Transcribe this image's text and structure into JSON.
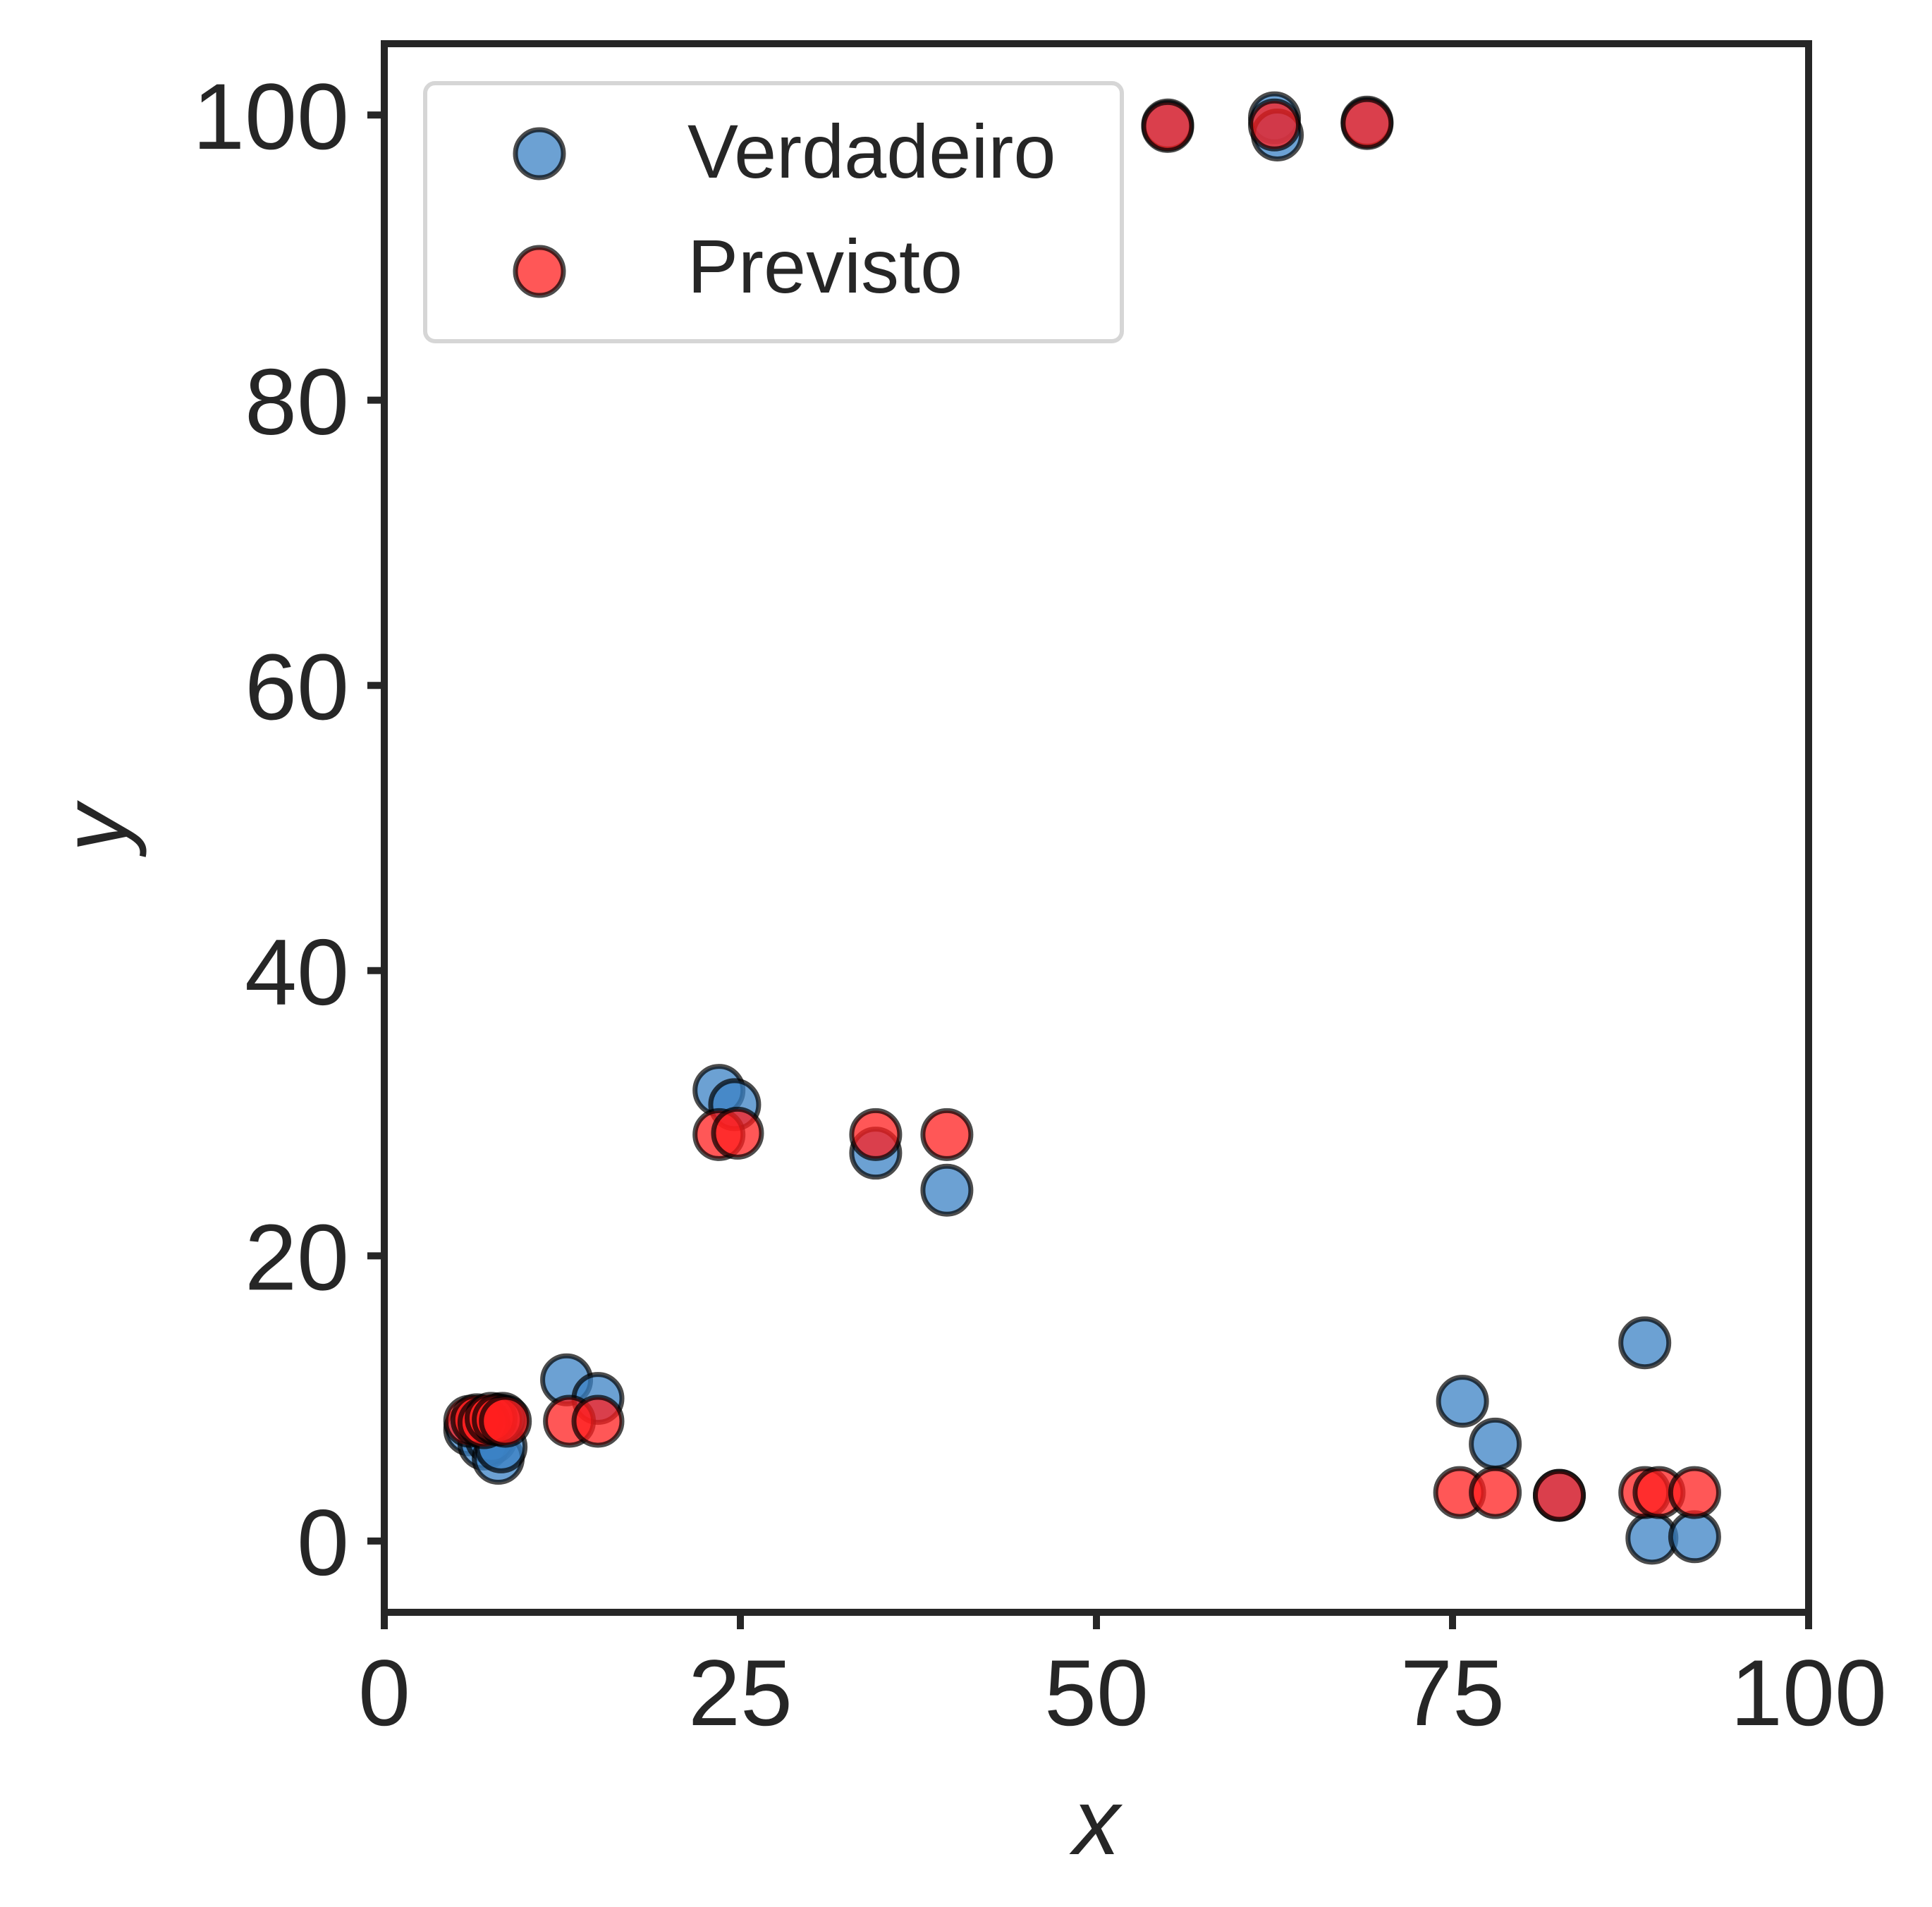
{
  "chart_data": {
    "type": "scatter",
    "title": "",
    "xlabel": "x",
    "ylabel": "y",
    "xlim": [
      0,
      100
    ],
    "ylim": [
      -5,
      105
    ],
    "xticks": [
      0,
      25,
      50,
      75,
      100
    ],
    "yticks": [
      0,
      20,
      40,
      60,
      80,
      100
    ],
    "grid": false,
    "legend_position": "top-left",
    "series": [
      {
        "name": "Verdadeiro",
        "color": "#3b82c4",
        "opacity": 0.75,
        "points": [
          [
            6,
            7.8
          ],
          [
            6.7,
            8.4
          ],
          [
            7,
            6.8
          ],
          [
            7.5,
            7.2
          ],
          [
            8,
            5.8
          ],
          [
            8.2,
            6.6
          ],
          [
            8.3,
            8.6
          ],
          [
            12.8,
            11.3
          ],
          [
            15,
            10
          ],
          [
            23.5,
            31.6
          ],
          [
            24.6,
            30.6
          ],
          [
            34.5,
            27.2
          ],
          [
            39.5,
            24.6
          ],
          [
            55,
            99.3
          ],
          [
            62.5,
            99.8
          ],
          [
            62.7,
            98.6
          ],
          [
            69,
            99.5
          ],
          [
            75.7,
            9.8
          ],
          [
            78,
            6.8
          ],
          [
            82.5,
            3.2
          ],
          [
            88.5,
            13.9
          ],
          [
            89,
            0.2
          ],
          [
            92,
            0.3
          ]
        ]
      },
      {
        "name": "Previsto",
        "color": "#ff1f1f",
        "opacity": 0.75,
        "points": [
          [
            6,
            8.4
          ],
          [
            6.5,
            8.5
          ],
          [
            7,
            8.3
          ],
          [
            7.5,
            8.6
          ],
          [
            8,
            8.5
          ],
          [
            8.5,
            8.4
          ],
          [
            13,
            8.4
          ],
          [
            15,
            8.4
          ],
          [
            23.5,
            28.5
          ],
          [
            24.8,
            28.6
          ],
          [
            34.5,
            28.5
          ],
          [
            39.5,
            28.5
          ],
          [
            55,
            99.2
          ],
          [
            62.5,
            99.3
          ],
          [
            69,
            99.4
          ],
          [
            75.5,
            3.4
          ],
          [
            78,
            3.4
          ],
          [
            82.5,
            3.2
          ],
          [
            88.5,
            3.4
          ],
          [
            89.5,
            3.4
          ],
          [
            92,
            3.4
          ]
        ]
      }
    ]
  }
}
